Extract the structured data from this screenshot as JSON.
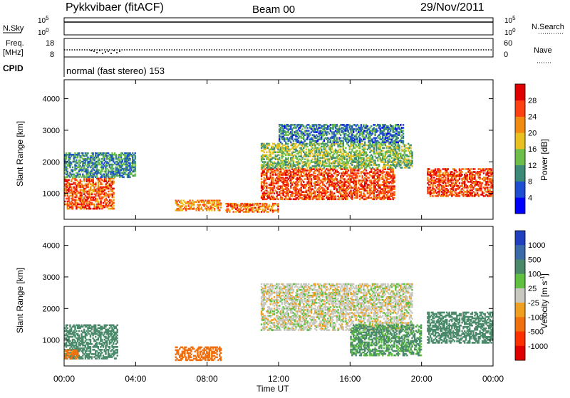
{
  "header": {
    "station": "Pykkvibaer (fitACF)",
    "beam": "Beam 00",
    "date": "29/Nov/2011"
  },
  "top_panels": {
    "nsky": {
      "label": "N.Sky",
      "ticks": [
        "10^5",
        "10^0"
      ],
      "right_label": "N.Search",
      "right_ticks": [
        "10^5",
        "10^0"
      ]
    },
    "freq": {
      "label_line1": "Freq.",
      "label_line2": "[MHz]",
      "ticks": [
        "18",
        "8"
      ],
      "right_label": "Nave",
      "right_ticks": [
        "60",
        "0"
      ]
    },
    "cpid": {
      "label": "CPID",
      "value": "normal (fast stereo) 153"
    }
  },
  "colors": {
    "power_scale": [
      "#0000ff",
      "#1e4fd2",
      "#3c8a78",
      "#6cc04a",
      "#e8c020",
      "#f08a10",
      "#ff4010",
      "#e00000"
    ],
    "velocity_scale": [
      "#2040c0",
      "#3a6aa8",
      "#4a8a6a",
      "#60c040",
      "#c8c8c0",
      "#f0a020",
      "#f07010",
      "#ff3000",
      "#e00000"
    ]
  },
  "chart_data": [
    {
      "type": "heatmap",
      "title": "",
      "xlabel": "Time UT",
      "ylabel": "Slant Range [km]",
      "xlim": [
        "00:00",
        "00:00"
      ],
      "ylim": [
        180,
        4600
      ],
      "x_ticks": [
        "00:00",
        "04:00",
        "08:00",
        "12:00",
        "16:00",
        "20:00",
        "00:00"
      ],
      "y_ticks": [
        "1000",
        "2000",
        "3000",
        "4000"
      ],
      "colorbar": {
        "label": "Power [dB]",
        "range": [
          0,
          32
        ],
        "ticks": [
          "4",
          "8",
          "12",
          "16",
          "20",
          "24",
          "28"
        ]
      },
      "echo_regions": [
        {
          "t_start": 0.0,
          "t_end": 2.8,
          "range_min": 500,
          "range_max": 1500,
          "power": 25
        },
        {
          "t_start": 0.0,
          "t_end": 4.0,
          "range_min": 1500,
          "range_max": 2300,
          "power": 10
        },
        {
          "t_start": 6.2,
          "t_end": 8.8,
          "range_min": 450,
          "range_max": 800,
          "power": 22
        },
        {
          "t_start": 9.0,
          "t_end": 12.0,
          "range_min": 400,
          "range_max": 700,
          "power": 24
        },
        {
          "t_start": 11.0,
          "t_end": 18.5,
          "range_min": 800,
          "range_max": 1800,
          "power": 26
        },
        {
          "t_start": 11.0,
          "t_end": 19.5,
          "range_min": 1800,
          "range_max": 2600,
          "power": 14
        },
        {
          "t_start": 12.0,
          "t_end": 19.0,
          "range_min": 2600,
          "range_max": 3200,
          "power": 9
        },
        {
          "t_start": 20.3,
          "t_end": 24.0,
          "range_min": 900,
          "range_max": 1800,
          "power": 26
        }
      ]
    },
    {
      "type": "heatmap",
      "title": "",
      "xlabel": "Time UT",
      "ylabel": "Slant Range [km]",
      "xlim": [
        "00:00",
        "00:00"
      ],
      "ylim": [
        180,
        4600
      ],
      "x_ticks": [
        "00:00",
        "04:00",
        "08:00",
        "12:00",
        "16:00",
        "20:00",
        "00:00"
      ],
      "y_ticks": [
        "1000",
        "2000",
        "3000",
        "4000"
      ],
      "colorbar": {
        "label": "Velocity [m s^-1]",
        "ticks": [
          "1000",
          "500",
          "100",
          "25",
          "-25",
          "-100",
          "-500",
          "-1000"
        ]
      },
      "echo_regions": [
        {
          "t_start": 0.0,
          "t_end": 3.0,
          "range_min": 400,
          "range_max": 1500,
          "velocity": 300
        },
        {
          "t_start": 0.0,
          "t_end": 0.8,
          "range_min": 400,
          "range_max": 700,
          "velocity": -200
        },
        {
          "t_start": 6.2,
          "t_end": 8.8,
          "range_min": 350,
          "range_max": 800,
          "velocity": -300
        },
        {
          "t_start": 11.0,
          "t_end": 19.5,
          "range_min": 1300,
          "range_max": 2800,
          "velocity": 0
        },
        {
          "t_start": 16.0,
          "t_end": 20.0,
          "range_min": 500,
          "range_max": 1500,
          "velocity": 150
        },
        {
          "t_start": 20.3,
          "t_end": 24.0,
          "range_min": 900,
          "range_max": 1900,
          "velocity": 300
        }
      ]
    }
  ]
}
